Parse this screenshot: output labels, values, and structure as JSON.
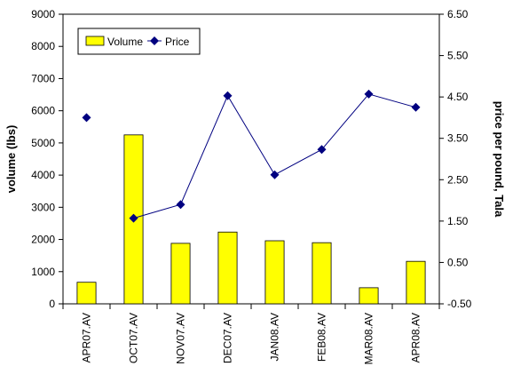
{
  "chart_data": {
    "type": "bar",
    "categories": [
      "APR07.AV",
      "OCT07.AV",
      "NOV07.AV",
      "DEC07.AV",
      "JAN08.AV",
      "FEB08.AV",
      "MAR08.AV",
      "APR08.AV"
    ],
    "series": [
      {
        "name": "Volume",
        "type": "bar",
        "axis": "left",
        "values": [
          670,
          5250,
          1880,
          2230,
          1960,
          1900,
          500,
          1320
        ],
        "color": "#ffff00"
      },
      {
        "name": "Price",
        "type": "line",
        "axis": "right",
        "values": [
          4.0,
          1.57,
          1.9,
          4.53,
          2.62,
          3.23,
          4.57,
          4.25
        ],
        "color": "#000080",
        "connected_from_index": 1
      }
    ],
    "ylabel": "volume (lbs)",
    "y2label": "price per pound, Tala",
    "ylim": [
      0,
      9000
    ],
    "y2lim": [
      -0.5,
      6.5
    ],
    "yticks": [
      0,
      1000,
      2000,
      3000,
      4000,
      5000,
      6000,
      7000,
      8000,
      9000
    ],
    "y2ticks": [
      "-0.50",
      "0.50",
      "1.50",
      "2.50",
      "3.50",
      "4.50",
      "5.50",
      "6.50"
    ],
    "grid": false,
    "legend": "top-left"
  }
}
